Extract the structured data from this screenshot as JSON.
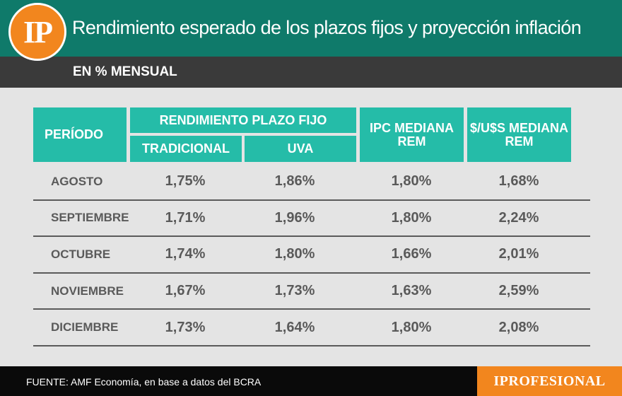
{
  "header": {
    "logo_text": "IP",
    "title": "Rendimiento esperado de los plazos fijos y proyección inflación",
    "subtitle": "EN % MENSUAL"
  },
  "table": {
    "headers": {
      "periodo": "PERÍODO",
      "rendimiento_plazo_fijo": "RENDIMIENTO PLAZO FIJO",
      "tradicional": "TRADICIONAL",
      "uva": "UVA",
      "ipc": "IPC MEDIANA REM",
      "usd": "$/U$S MEDIANA REM"
    },
    "rows": [
      {
        "periodo": "AGOSTO",
        "tradicional": "1,75%",
        "uva": "1,86%",
        "ipc": "1,80%",
        "usd": "1,68%"
      },
      {
        "periodo": "SEPTIEMBRE",
        "tradicional": "1,71%",
        "uva": "1,96%",
        "ipc": "1,80%",
        "usd": "2,24%"
      },
      {
        "periodo": "OCTUBRE",
        "tradicional": "1,74%",
        "uva": "1,80%",
        "ipc": "1,66%",
        "usd": "2,01%"
      },
      {
        "periodo": "NOVIEMBRE",
        "tradicional": "1,67%",
        "uva": "1,73%",
        "ipc": "1,63%",
        "usd": "2,59%"
      },
      {
        "periodo": "DICIEMBRE",
        "tradicional": "1,73%",
        "uva": "1,64%",
        "ipc": "1,80%",
        "usd": "2,08%"
      }
    ]
  },
  "footer": {
    "source": "FUENTE: AMF Economía, en base a datos del BCRA",
    "brand": "IPROFESIONAL"
  },
  "colors": {
    "header_green": "#0f7a6a",
    "table_header_teal": "#25bca8",
    "brand_orange": "#f2861e",
    "dark_band": "#3a3a3a",
    "text_gray": "#5a5a5a"
  }
}
